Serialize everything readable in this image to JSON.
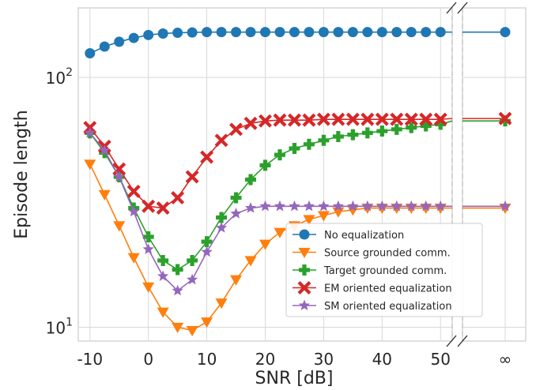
{
  "chart_data": {
    "type": "line",
    "title": "",
    "xlabel": "SNR [dB]",
    "ylabel": "Episode length",
    "yscale": "log",
    "ylim": [
      8.8,
      190
    ],
    "xlim": [
      -12,
      52
    ],
    "broken_axis": true,
    "infinity_label": "∞",
    "xticks": [
      {
        "value": -10,
        "label": "-10"
      },
      {
        "value": 0,
        "label": "0"
      },
      {
        "value": 10,
        "label": "10"
      },
      {
        "value": 20,
        "label": "20"
      },
      {
        "value": 30,
        "label": "30"
      },
      {
        "value": 40,
        "label": "40"
      },
      {
        "value": 50,
        "label": "50"
      }
    ],
    "yticks": [
      {
        "value": 10,
        "base": "10",
        "exp": "1"
      },
      {
        "value": 100,
        "base": "10",
        "exp": "2"
      }
    ],
    "grid": true,
    "legend_position": "lower-right",
    "x": [
      -10,
      -7.5,
      -5,
      -2.5,
      0,
      2.5,
      5,
      7.5,
      10,
      12.5,
      15,
      17.5,
      20,
      22.5,
      25,
      27.5,
      30,
      32.5,
      35,
      37.5,
      40,
      42.5,
      45,
      47.5,
      50
    ],
    "series": [
      {
        "name": "No equalization",
        "color": "#1f77b4",
        "marker": "circle",
        "values": [
          125,
          133,
          139,
          144,
          148,
          150,
          151,
          151.5,
          152,
          152,
          152,
          152,
          152,
          152,
          152,
          152,
          152,
          152,
          152,
          152,
          152,
          152,
          152,
          152,
          152
        ],
        "value_at_infinity": 152
      },
      {
        "name": "Source grounded comm.",
        "color": "#ff7f0e",
        "marker": "triangle-down",
        "values": [
          45,
          34,
          25.5,
          19,
          14.5,
          11.5,
          10,
          9.7,
          10.5,
          12.5,
          15.5,
          18.5,
          21.5,
          24,
          25.5,
          27,
          28,
          29,
          29.5,
          30,
          30,
          30,
          30,
          30,
          30
        ],
        "value_at_infinity": 30
      },
      {
        "name": "Target grounded comm.",
        "color": "#2ca02c",
        "marker": "plus",
        "values": [
          60,
          50,
          40,
          30,
          23,
          18.5,
          17,
          18.5,
          22,
          27.5,
          33,
          39,
          44.5,
          49,
          52,
          54,
          56,
          58,
          59,
          60,
          61,
          62,
          63,
          64,
          65
        ],
        "value_at_infinity": 67
      },
      {
        "name": "EM oriented equalization",
        "color": "#d62728",
        "marker": "x",
        "values": [
          63,
          53,
          43,
          35,
          30.5,
          30,
          33,
          40,
          48,
          56,
          62,
          65.5,
          67,
          67.5,
          67.5,
          67.5,
          68,
          68,
          68,
          68,
          68,
          68,
          68,
          68,
          68
        ],
        "value_at_infinity": 68.5
      },
      {
        "name": "SM oriented equalization",
        "color": "#9467bd",
        "marker": "star",
        "values": [
          60,
          51,
          40,
          29,
          20.5,
          16,
          14,
          15.5,
          20,
          25,
          28.5,
          30,
          30.5,
          30.5,
          30.5,
          30.5,
          30.5,
          30.5,
          30.5,
          30.5,
          30.5,
          30.5,
          30.5,
          30.5,
          30.5
        ],
        "value_at_infinity": 30.5
      }
    ]
  }
}
